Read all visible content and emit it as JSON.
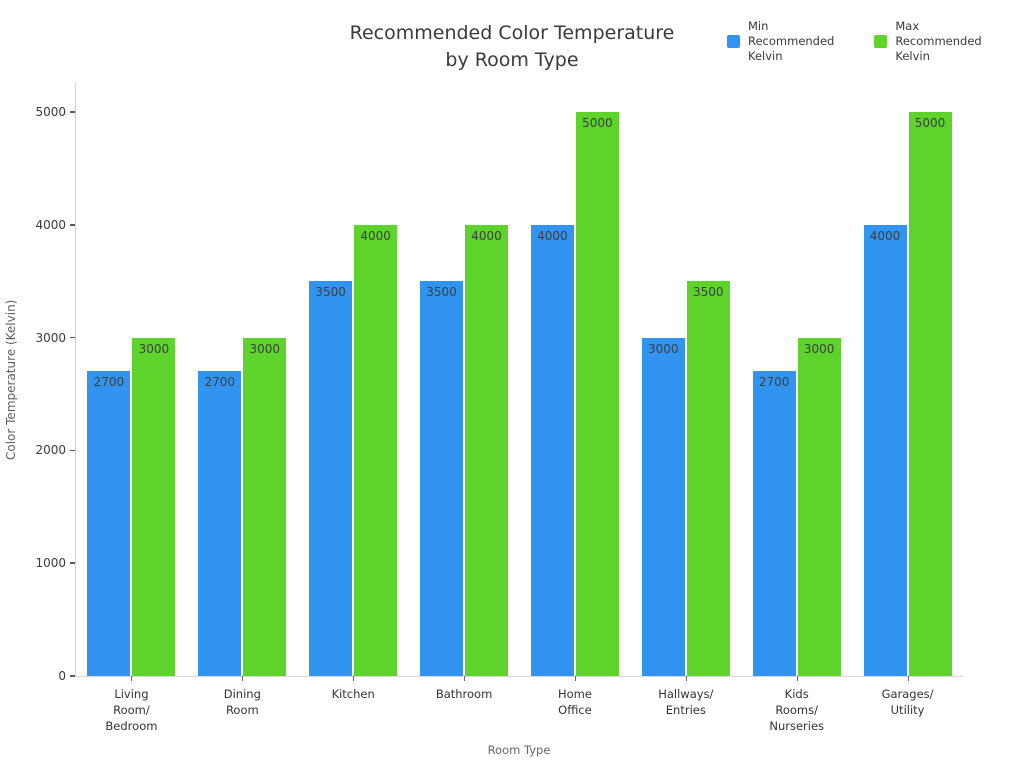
{
  "header": {
    "title_line1": "Recommended Color Temperature",
    "title_line2": "by Room Type"
  },
  "legend": [
    {
      "label": "Min\nRecommended\nKelvin",
      "color": "#3094f0"
    },
    {
      "label": "Max\nRecommended\nKelvin",
      "color": "#5dd32c"
    }
  ],
  "chart_data": {
    "type": "bar",
    "title": "Recommended Color Temperature by Room Type",
    "xlabel": "Room Type",
    "ylabel": "Color Temperature (Kelvin)",
    "categories": [
      "Living\nRoom/\nBedroom",
      "Dining\nRoom",
      "Kitchen",
      "Bathroom",
      "Home\nOffice",
      "Hallways/\nEntries",
      "Kids\nRooms/\nNurseries",
      "Garages/\nUtility"
    ],
    "series": [
      {
        "name": "Min Recommended Kelvin",
        "color": "#3094f0",
        "values": [
          2700,
          2700,
          3500,
          3500,
          4000,
          3000,
          2700,
          4000
        ]
      },
      {
        "name": "Max Recommended Kelvin",
        "color": "#5dd32c",
        "values": [
          3000,
          3000,
          4000,
          4000,
          5000,
          3500,
          3000,
          5000
        ]
      }
    ],
    "ylim": [
      0,
      5000
    ],
    "yticks": [
      0,
      1000,
      2000,
      3000,
      4000,
      5000
    ],
    "bar_labels": true,
    "legend_position": "top-right",
    "grid": false
  }
}
